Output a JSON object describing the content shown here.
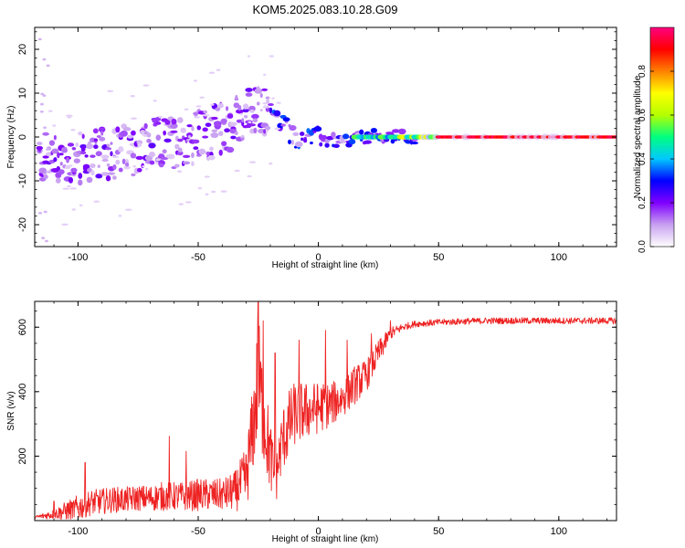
{
  "figure_title": "KOM5.2025.083.10.28.G09",
  "chart_data": [
    {
      "type": "heatmap",
      "id": "spectrogram",
      "xlabel": "Height of straight line (km)",
      "ylabel": "Frequency (Hz)",
      "xlim": [
        -118,
        124
      ],
      "ylim": [
        -25,
        25
      ],
      "xticks": [
        -100,
        -50,
        0,
        50,
        100
      ],
      "yticks": [
        -20,
        -10,
        0,
        10,
        20
      ],
      "colorbar": {
        "label": "Normalized spectral amplitude",
        "range": [
          0,
          1
        ],
        "ticks": [
          0.0,
          0.2,
          0.4,
          0.6,
          0.8
        ],
        "colors": [
          "#ffffff",
          "#c8a0f0",
          "#8000ff",
          "#0000ff",
          "#00c8ff",
          "#00ff80",
          "#b4ff00",
          "#ffff00",
          "#ff8000",
          "#ff0000",
          "#ff0080"
        ]
      },
      "ridge": [
        {
          "x": -110,
          "f": -5
        },
        {
          "x": -100,
          "f": -5
        },
        {
          "x": -90,
          "f": -4
        },
        {
          "x": -80,
          "f": -3
        },
        {
          "x": -70,
          "f": -2
        },
        {
          "x": -60,
          "f": -1
        },
        {
          "x": -50,
          "f": 0
        },
        {
          "x": -40,
          "f": 2
        },
        {
          "x": -30,
          "f": 5
        },
        {
          "x": -20,
          "f": 6
        },
        {
          "x": -10,
          "f": 0
        },
        {
          "x": 0,
          "f": -0.5
        },
        {
          "x": 10,
          "f": -1
        },
        {
          "x": 20,
          "f": 0
        },
        {
          "x": 50,
          "f": 0
        },
        {
          "x": 124,
          "f": 0
        }
      ]
    },
    {
      "type": "line",
      "id": "snr",
      "xlabel": "Height of straight line (km)",
      "ylabel": "SNR (v/v)",
      "xlim": [
        -118,
        124
      ],
      "ylim": [
        0,
        680
      ],
      "xticks": [
        -100,
        -50,
        0,
        50,
        100
      ],
      "yticks": [
        200,
        400,
        600
      ],
      "line_color": "#ee2222",
      "series": [
        {
          "x": [
            -118,
            -110,
            -105,
            -100,
            -95,
            -90,
            -85,
            -80,
            -75,
            -70,
            -65,
            -60,
            -55,
            -50,
            -45,
            -40,
            -35,
            -30,
            -27,
            -25,
            -23,
            -20,
            -18,
            -15,
            -12,
            -10,
            -5,
            0,
            5,
            10,
            15,
            20,
            25,
            30,
            35,
            40,
            50,
            60,
            70,
            80,
            90,
            100,
            110,
            124
          ],
          "y": [
            10,
            20,
            30,
            40,
            55,
            60,
            65,
            65,
            70,
            70,
            75,
            75,
            75,
            80,
            80,
            80,
            90,
            130,
            300,
            450,
            330,
            200,
            120,
            250,
            300,
            330,
            340,
            350,
            360,
            380,
            420,
            450,
            520,
            580,
            600,
            610,
            615,
            618,
            620,
            620,
            620,
            620,
            620,
            620
          ],
          "noise": [
            5,
            15,
            30,
            40,
            40,
            40,
            40,
            40,
            40,
            40,
            45,
            45,
            45,
            50,
            50,
            50,
            60,
            100,
            150,
            200,
            150,
            120,
            80,
            100,
            110,
            100,
            90,
            80,
            70,
            60,
            60,
            50,
            40,
            20,
            12,
            10,
            10,
            10,
            10,
            10,
            10,
            10,
            10,
            10
          ]
        }
      ],
      "spikes": [
        {
          "x": -110,
          "y": 60
        },
        {
          "x": -97,
          "y": 180
        },
        {
          "x": -62,
          "y": 262
        },
        {
          "x": -55,
          "y": 215
        },
        {
          "x": -25,
          "y": 678
        },
        {
          "x": -23,
          "y": 620
        },
        {
          "x": -18,
          "y": 520
        },
        {
          "x": -8,
          "y": 560
        },
        {
          "x": 3,
          "y": 590
        },
        {
          "x": 12,
          "y": 560
        },
        {
          "x": 22,
          "y": 580
        },
        {
          "x": 30,
          "y": 620
        }
      ]
    }
  ]
}
